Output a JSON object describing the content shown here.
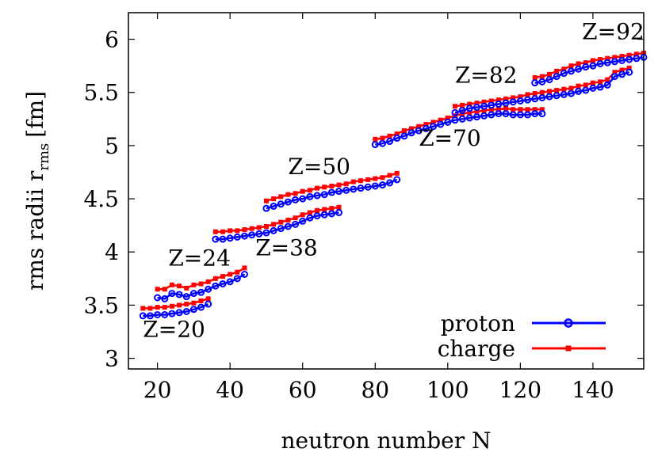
{
  "chart_data": {
    "type": "line",
    "xlabel": "neutron number N",
    "ylabel_main": "rms radii r",
    "ylabel_sub": "rms",
    "ylabel_unit": "[fm]",
    "xlim": [
      12,
      154
    ],
    "ylim": [
      2.9,
      6.25
    ],
    "xticks": [
      20,
      40,
      60,
      80,
      100,
      120,
      140
    ],
    "yticks": [
      3,
      3.5,
      4,
      4.5,
      5,
      5.5,
      6
    ],
    "ytick_labels": [
      "3",
      "3.5",
      "4",
      "4.5",
      "5",
      "5.5",
      "6"
    ],
    "grid": false,
    "legend_position": "bottom-right",
    "colors": {
      "proton": "#0000ff",
      "charge": "#ff0000"
    },
    "series": [
      {
        "name": "proton",
        "groups": [
          {
            "label": "Z=20",
            "x": [
              16,
              18,
              20,
              22,
              24,
              26,
              28,
              30,
              32,
              34
            ],
            "y": [
              3.4,
              3.4,
              3.41,
              3.41,
              3.42,
              3.43,
              3.44,
              3.46,
              3.48,
              3.51
            ]
          },
          {
            "label": "Z=24",
            "x": [
              20,
              22,
              24,
              26,
              28,
              30,
              32,
              34,
              36,
              38,
              40,
              42,
              44
            ],
            "y": [
              3.57,
              3.56,
              3.61,
              3.6,
              3.58,
              3.61,
              3.62,
              3.65,
              3.68,
              3.7,
              3.72,
              3.75,
              3.79
            ]
          },
          {
            "label": "Z=38",
            "x": [
              36,
              38,
              40,
              42,
              44,
              46,
              48,
              50,
              52,
              54,
              56,
              58,
              60,
              62,
              64,
              66,
              68,
              70
            ],
            "y": [
              4.12,
              4.12,
              4.13,
              4.14,
              4.15,
              4.16,
              4.17,
              4.18,
              4.2,
              4.22,
              4.24,
              4.26,
              4.29,
              4.32,
              4.34,
              4.35,
              4.36,
              4.37
            ]
          },
          {
            "label": "Z=50",
            "x": [
              50,
              52,
              54,
              56,
              58,
              60,
              62,
              64,
              66,
              68,
              70,
              72,
              74,
              76,
              78,
              80,
              82,
              84,
              86
            ],
            "y": [
              4.41,
              4.43,
              4.45,
              4.47,
              4.49,
              4.5,
              4.52,
              4.53,
              4.54,
              4.56,
              4.57,
              4.58,
              4.59,
              4.6,
              4.61,
              4.62,
              4.63,
              4.65,
              4.68
            ]
          },
          {
            "label": "Z=70",
            "x": [
              80,
              82,
              84,
              86,
              88,
              90,
              92,
              94,
              96,
              98,
              100,
              102,
              104,
              106,
              108,
              110,
              112,
              114,
              116,
              118,
              120,
              122,
              124,
              126
            ],
            "y": [
              5.01,
              5.02,
              5.04,
              5.07,
              5.09,
              5.12,
              5.14,
              5.16,
              5.18,
              5.2,
              5.22,
              5.24,
              5.25,
              5.26,
              5.27,
              5.28,
              5.29,
              5.3,
              5.3,
              5.29,
              5.29,
              5.29,
              5.3,
              5.3
            ]
          },
          {
            "label": "Z=82",
            "x": [
              102,
              104,
              106,
              108,
              110,
              112,
              114,
              116,
              118,
              120,
              122,
              124,
              126,
              128,
              130,
              132,
              134,
              136,
              138,
              140,
              142,
              144,
              146,
              148,
              150
            ],
            "y": [
              5.31,
              5.33,
              5.35,
              5.36,
              5.37,
              5.38,
              5.39,
              5.4,
              5.41,
              5.42,
              5.43,
              5.44,
              5.45,
              5.46,
              5.47,
              5.48,
              5.49,
              5.51,
              5.52,
              5.54,
              5.55,
              5.57,
              5.65,
              5.67,
              5.69
            ]
          },
          {
            "label": "Z=92",
            "x": [
              124,
              126,
              128,
              130,
              132,
              134,
              136,
              138,
              140,
              142,
              144,
              146,
              148,
              150,
              152,
              154
            ],
            "y": [
              5.59,
              5.6,
              5.62,
              5.65,
              5.68,
              5.7,
              5.72,
              5.74,
              5.75,
              5.77,
              5.78,
              5.79,
              5.8,
              5.81,
              5.82,
              5.83
            ]
          }
        ]
      },
      {
        "name": "charge",
        "groups": [
          {
            "label": "Z=20",
            "x": [
              16,
              18,
              20,
              22,
              24,
              26,
              28,
              30,
              32,
              34
            ],
            "y": [
              3.47,
              3.47,
              3.48,
              3.48,
              3.49,
              3.5,
              3.51,
              3.52,
              3.54,
              3.56
            ]
          },
          {
            "label": "Z=24",
            "x": [
              20,
              22,
              24,
              26,
              28,
              30,
              32,
              34,
              36,
              38,
              40,
              42,
              44
            ],
            "y": [
              3.65,
              3.65,
              3.69,
              3.68,
              3.66,
              3.69,
              3.7,
              3.72,
              3.75,
              3.77,
              3.79,
              3.81,
              3.85
            ]
          },
          {
            "label": "Z=38",
            "x": [
              36,
              38,
              40,
              42,
              44,
              46,
              48,
              50,
              52,
              54,
              56,
              58,
              60,
              62,
              64,
              66,
              68,
              70
            ],
            "y": [
              4.19,
              4.19,
              4.2,
              4.2,
              4.21,
              4.22,
              4.23,
              4.24,
              4.26,
              4.28,
              4.3,
              4.32,
              4.35,
              4.37,
              4.39,
              4.4,
              4.41,
              4.42
            ]
          },
          {
            "label": "Z=50",
            "x": [
              50,
              52,
              54,
              56,
              58,
              60,
              62,
              64,
              66,
              68,
              70,
              72,
              74,
              76,
              78,
              80,
              82,
              84,
              86
            ],
            "y": [
              4.48,
              4.5,
              4.52,
              4.54,
              4.55,
              4.57,
              4.58,
              4.6,
              4.61,
              4.62,
              4.63,
              4.64,
              4.66,
              4.67,
              4.68,
              4.69,
              4.7,
              4.72,
              4.74
            ]
          },
          {
            "label": "Z=70",
            "x": [
              80,
              82,
              84,
              86,
              88,
              90,
              92,
              94,
              96,
              98,
              100,
              102,
              104,
              106,
              108,
              110,
              112,
              114,
              116,
              118,
              120,
              122,
              124,
              126
            ],
            "y": [
              5.06,
              5.07,
              5.09,
              5.11,
              5.14,
              5.16,
              5.18,
              5.2,
              5.22,
              5.24,
              5.26,
              5.28,
              5.3,
              5.31,
              5.32,
              5.33,
              5.34,
              5.34,
              5.35,
              5.34,
              5.34,
              5.34,
              5.34,
              5.34
            ]
          },
          {
            "label": "Z=82",
            "x": [
              102,
              104,
              106,
              108,
              110,
              112,
              114,
              116,
              118,
              120,
              122,
              124,
              126,
              128,
              130,
              132,
              134,
              136,
              138,
              140,
              142,
              144,
              146,
              148,
              150
            ],
            "y": [
              5.37,
              5.38,
              5.39,
              5.4,
              5.41,
              5.42,
              5.43,
              5.44,
              5.45,
              5.46,
              5.48,
              5.49,
              5.5,
              5.51,
              5.52,
              5.53,
              5.54,
              5.56,
              5.57,
              5.59,
              5.6,
              5.62,
              5.69,
              5.71,
              5.73
            ]
          },
          {
            "label": "Z=92",
            "x": [
              124,
              126,
              128,
              130,
              132,
              134,
              136,
              138,
              140,
              142,
              144,
              146,
              148,
              150,
              152,
              154
            ],
            "y": [
              5.64,
              5.65,
              5.67,
              5.7,
              5.72,
              5.75,
              5.77,
              5.78,
              5.8,
              5.81,
              5.82,
              5.83,
              5.84,
              5.85,
              5.86,
              5.87
            ]
          }
        ]
      }
    ],
    "annotations": [
      {
        "text": "Z=20",
        "x": 16,
        "y": 3.2
      },
      {
        "text": "Z=24",
        "x": 23,
        "y": 3.87
      },
      {
        "text": "Z=38",
        "x": 47,
        "y": 3.97
      },
      {
        "text": "Z=50",
        "x": 56,
        "y": 4.73
      },
      {
        "text": "Z=70",
        "x": 92,
        "y": 5.0
      },
      {
        "text": "Z=82",
        "x": 102,
        "y": 5.59
      },
      {
        "text": "Z=92",
        "x": 137,
        "y": 6.0
      }
    ]
  }
}
